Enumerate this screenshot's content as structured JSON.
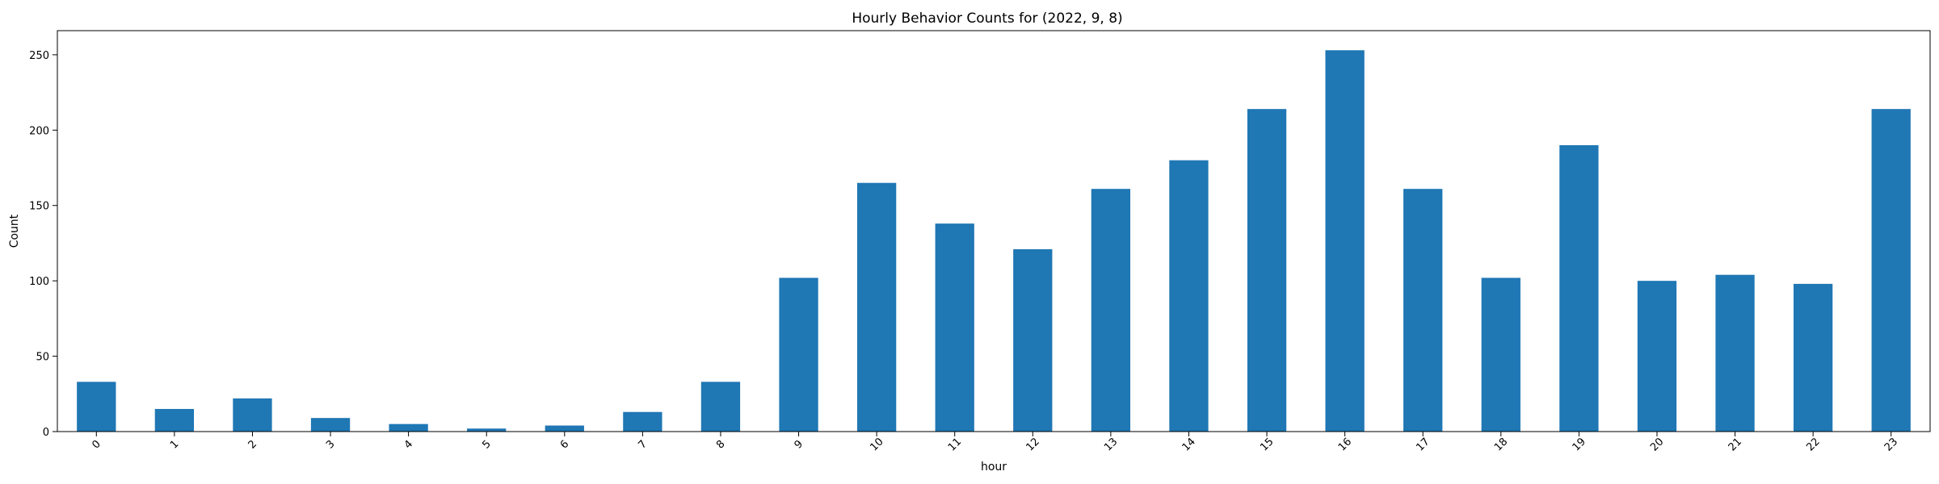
{
  "chart_data": {
    "type": "bar",
    "title": "Hourly Behavior Counts for (2022, 9, 8)",
    "xlabel": "hour",
    "ylabel": "Count",
    "categories": [
      "0",
      "1",
      "2",
      "3",
      "4",
      "5",
      "6",
      "7",
      "8",
      "9",
      "10",
      "11",
      "12",
      "13",
      "14",
      "15",
      "16",
      "17",
      "18",
      "19",
      "20",
      "21",
      "22",
      "23"
    ],
    "values": [
      33,
      15,
      22,
      9,
      5,
      2,
      4,
      13,
      33,
      102,
      165,
      138,
      121,
      161,
      180,
      214,
      253,
      161,
      102,
      190,
      100,
      104,
      98,
      214
    ],
    "ylim": [
      0,
      266
    ],
    "yticks": [
      0,
      50,
      100,
      150,
      200,
      250
    ],
    "grid": false,
    "legend": "none",
    "bar_color": "#1f77b4",
    "x_tick_rotation": 45
  }
}
